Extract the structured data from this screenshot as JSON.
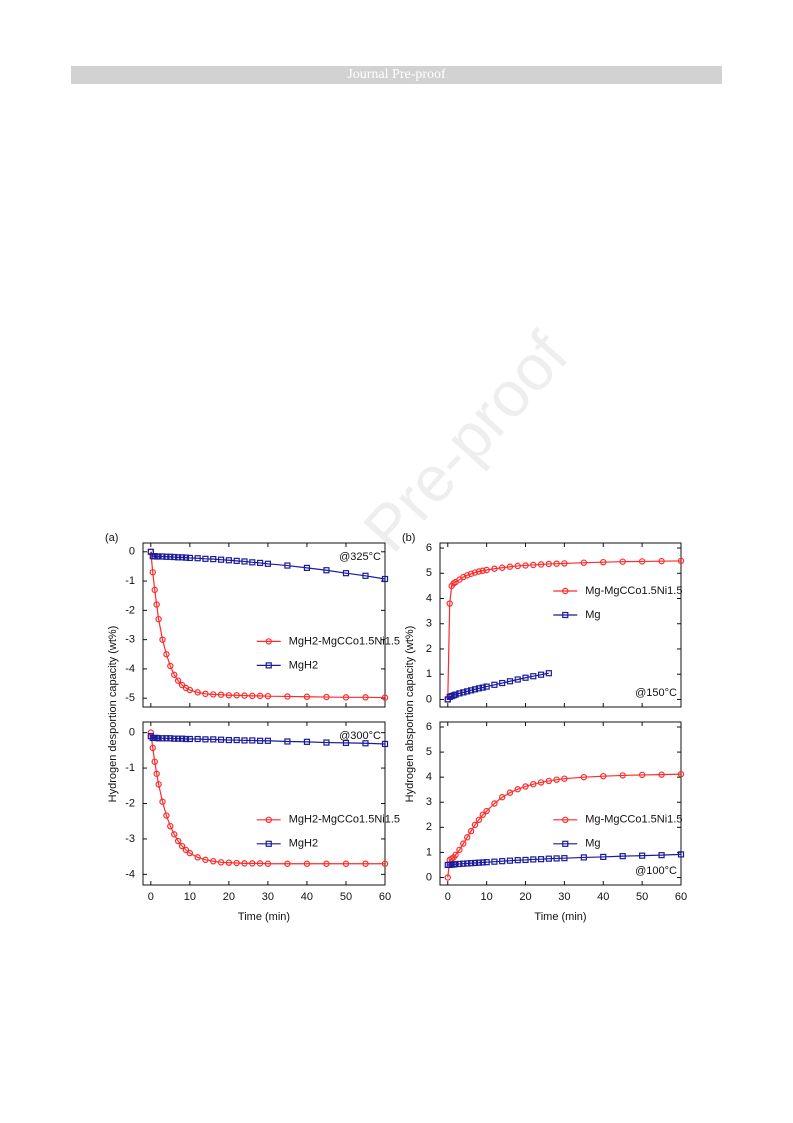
{
  "header": "Journal Pre-proof",
  "watermark": "Pre-proof",
  "chart_data": [
    {
      "type": "line",
      "panel": "(a)",
      "ylabel": "Hydrogen desportion capacity (wt%)",
      "annotation": "@325°C",
      "annotation_loc": "upper right",
      "legend": "center right",
      "xtick_labels": false,
      "x": [
        0,
        0.5,
        1,
        1.5,
        2,
        3,
        4,
        5,
        6,
        7,
        8,
        9,
        10,
        12,
        14,
        16,
        18,
        20,
        22,
        24,
        26,
        28,
        30,
        35,
        40,
        45,
        50,
        55,
        60
      ],
      "xlim": [
        -2,
        60
      ],
      "xticks": [
        0,
        10,
        20,
        30,
        40,
        50,
        60
      ],
      "ylim": [
        -5.3,
        0.3
      ],
      "yticks": [
        -5,
        -4,
        -3,
        -2,
        -1,
        0
      ],
      "series": [
        {
          "name": "MgH2-MgCCo1.5Ni1.5",
          "color": "#ff2a2a",
          "marker": "circle",
          "values": [
            0,
            -0.7,
            -1.3,
            -1.8,
            -2.3,
            -3.0,
            -3.5,
            -3.9,
            -4.2,
            -4.4,
            -4.55,
            -4.65,
            -4.72,
            -4.8,
            -4.85,
            -4.87,
            -4.88,
            -4.9,
            -4.9,
            -4.91,
            -4.92,
            -4.92,
            -4.93,
            -4.94,
            -4.95,
            -4.96,
            -4.97,
            -4.97,
            -4.98
          ]
        },
        {
          "name": "MgH2",
          "color": "#1a1a9c",
          "marker": "square",
          "values": [
            0,
            -0.15,
            -0.15,
            -0.16,
            -0.16,
            -0.16,
            -0.17,
            -0.17,
            -0.18,
            -0.19,
            -0.19,
            -0.2,
            -0.21,
            -0.22,
            -0.24,
            -0.25,
            -0.27,
            -0.29,
            -0.31,
            -0.33,
            -0.36,
            -0.38,
            -0.41,
            -0.47,
            -0.55,
            -0.63,
            -0.73,
            -0.82,
            -0.93
          ]
        }
      ]
    },
    {
      "type": "line",
      "xlabel": "Time (min)",
      "annotation": "@300°C",
      "annotation_loc": "upper right",
      "legend": "center right",
      "xtick_labels": true,
      "x": [
        0,
        0.5,
        1,
        1.5,
        2,
        3,
        4,
        5,
        6,
        7,
        8,
        9,
        10,
        12,
        14,
        16,
        18,
        20,
        22,
        24,
        26,
        28,
        30,
        35,
        40,
        45,
        50,
        55,
        60
      ],
      "xlim": [
        -2,
        60
      ],
      "xticks": [
        0,
        10,
        20,
        30,
        40,
        50,
        60
      ],
      "ylim": [
        -4.3,
        0.3
      ],
      "yticks": [
        -4,
        -3,
        -2,
        -1,
        0
      ],
      "series": [
        {
          "name": "MgH2-MgCCo1.5Ni1.5",
          "color": "#ff2a2a",
          "marker": "circle",
          "values": [
            0,
            -0.43,
            -0.82,
            -1.16,
            -1.46,
            -1.95,
            -2.34,
            -2.64,
            -2.87,
            -3.06,
            -3.2,
            -3.31,
            -3.4,
            -3.52,
            -3.59,
            -3.63,
            -3.66,
            -3.67,
            -3.68,
            -3.69,
            -3.69,
            -3.69,
            -3.7,
            -3.7,
            -3.7,
            -3.7,
            -3.7,
            -3.7,
            -3.7
          ]
        },
        {
          "name": "MgH2",
          "color": "#1a1a9c",
          "marker": "square",
          "values": [
            -0.1,
            -0.15,
            -0.15,
            -0.15,
            -0.16,
            -0.16,
            -0.16,
            -0.16,
            -0.17,
            -0.17,
            -0.17,
            -0.18,
            -0.18,
            -0.18,
            -0.19,
            -0.19,
            -0.2,
            -0.21,
            -0.21,
            -0.22,
            -0.22,
            -0.23,
            -0.23,
            -0.25,
            -0.26,
            -0.28,
            -0.29,
            -0.3,
            -0.32
          ]
        }
      ]
    },
    {
      "type": "line",
      "panel": "(b)",
      "ylabel": "Hydrogen absportion capacity (wt%)",
      "annotation": "@150°C",
      "annotation_loc": "lower right",
      "legend": "upper right",
      "xtick_labels": false,
      "x": [
        0,
        0.5,
        1,
        1.5,
        2,
        3,
        4,
        5,
        6,
        7,
        8,
        9,
        10,
        12,
        14,
        16,
        18,
        20,
        22,
        24,
        26,
        28,
        30,
        35,
        40,
        45,
        50,
        55,
        60
      ],
      "xlim": [
        -2,
        60
      ],
      "xticks": [
        0,
        10,
        20,
        30,
        40,
        50,
        60
      ],
      "ylim": [
        -0.3,
        6.2
      ],
      "yticks": [
        0,
        1,
        2,
        3,
        4,
        5,
        6
      ],
      "series": [
        {
          "name": "Mg-MgCCo1.5Ni1.5",
          "color": "#ff2a2a",
          "marker": "circle",
          "values": [
            0,
            3.8,
            4.5,
            4.6,
            4.65,
            4.75,
            4.85,
            4.92,
            4.98,
            5.03,
            5.07,
            5.1,
            5.13,
            5.18,
            5.22,
            5.26,
            5.29,
            5.31,
            5.33,
            5.35,
            5.37,
            5.38,
            5.39,
            5.42,
            5.44,
            5.46,
            5.47,
            5.48,
            5.49
          ]
        },
        {
          "name": "Mg",
          "color": "#1a1a9c",
          "marker": "square",
          "values": [
            0,
            0.1,
            0.13,
            0.16,
            0.19,
            0.24,
            0.28,
            0.32,
            0.36,
            0.4,
            0.44,
            0.47,
            0.51,
            0.58,
            0.65,
            0.72,
            0.79,
            0.86,
            0.92,
            0.98,
            1.04,
            null,
            null,
            null,
            null,
            null,
            null,
            null,
            null
          ]
        }
      ]
    },
    {
      "type": "line",
      "xlabel": "Time (min)",
      "annotation": "@100°C",
      "annotation_loc": "lower right",
      "legend": "center right",
      "xtick_labels": true,
      "x": [
        0,
        0.5,
        1,
        1.5,
        2,
        3,
        4,
        5,
        6,
        7,
        8,
        9,
        10,
        12,
        14,
        16,
        18,
        20,
        22,
        24,
        26,
        28,
        30,
        35,
        40,
        45,
        50,
        55,
        60
      ],
      "xlim": [
        -2,
        60
      ],
      "xticks": [
        0,
        10,
        20,
        30,
        40,
        50,
        60
      ],
      "ylim": [
        -0.3,
        6.2
      ],
      "yticks": [
        0,
        1,
        2,
        3,
        4,
        5,
        6
      ],
      "series": [
        {
          "name": "Mg-MgCCo1.5Ni1.5",
          "color": "#ff2a2a",
          "marker": "circle",
          "values": [
            0,
            0.7,
            0.75,
            0.8,
            0.9,
            1.1,
            1.35,
            1.6,
            1.85,
            2.1,
            2.3,
            2.5,
            2.65,
            2.95,
            3.2,
            3.38,
            3.52,
            3.63,
            3.72,
            3.79,
            3.85,
            3.9,
            3.94,
            4.0,
            4.04,
            4.07,
            4.09,
            4.1,
            4.12
          ]
        },
        {
          "name": "Mg",
          "color": "#1a1a9c",
          "marker": "square",
          "values": [
            0.5,
            0.5,
            0.51,
            0.52,
            0.53,
            0.54,
            0.55,
            0.56,
            0.57,
            0.58,
            0.59,
            0.6,
            0.61,
            0.63,
            0.65,
            0.67,
            0.69,
            0.7,
            0.72,
            0.73,
            0.75,
            0.76,
            0.77,
            0.8,
            0.82,
            0.85,
            0.87,
            0.89,
            0.92
          ]
        }
      ]
    }
  ]
}
